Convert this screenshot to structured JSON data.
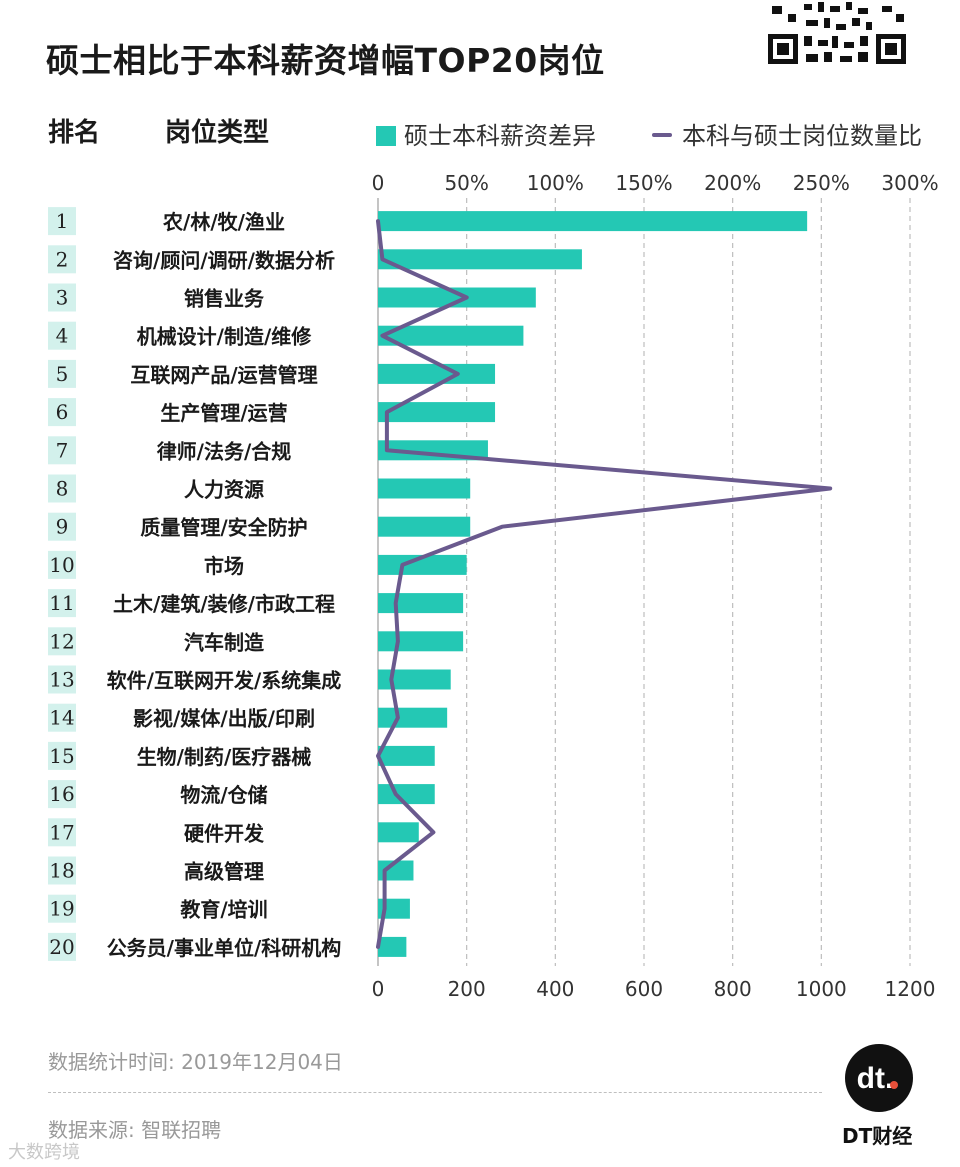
{
  "title": "硕士相比于本科薪资增幅TOP20岗位",
  "header": {
    "rank": "排名",
    "type": "岗位类型"
  },
  "legend": {
    "bar": "硕士本科薪资差异",
    "line": "本科与硕士岗位数量比"
  },
  "colors": {
    "bar": "#24c8b4",
    "line": "#6a5a8e",
    "rank_bg": "#d3f1ec"
  },
  "chart_data": {
    "type": "bar",
    "orientation": "horizontal",
    "categories": [
      "农/林/牧/渔业",
      "咨询/顾问/调研/数据分析",
      "销售业务",
      "机械设计/制造/维修",
      "互联网产品/运营管理",
      "生产管理/运营",
      "律师/法务/合规",
      "人力资源",
      "质量管理/安全防护",
      "市场",
      "土木/建筑/装修/市政工程",
      "汽车制造",
      "软件/互联网开发/系统集成",
      "影视/媒体/出版/印刷",
      "生物/制药/医疗器械",
      "物流/仓储",
      "硬件开发",
      "高级管理",
      "教育/培训",
      "公务员/事业单位/科研机构"
    ],
    "ranks": [
      "1",
      "2",
      "3",
      "4",
      "5",
      "6",
      "7",
      "8",
      "9",
      "10",
      "11",
      "12",
      "13",
      "14",
      "15",
      "16",
      "17",
      "18",
      "19",
      "20"
    ],
    "series": [
      {
        "name": "硕士本科薪资差异",
        "kind": "bar",
        "axis": "top",
        "unit": "%",
        "values": [
          242,
          115,
          89,
          82,
          66,
          66,
          62,
          52,
          52,
          50,
          48,
          48,
          41,
          39,
          32,
          32,
          23,
          20,
          18,
          16
        ]
      },
      {
        "name": "本科与硕士岗位数量比",
        "kind": "line",
        "axis": "bottom",
        "values": [
          0,
          10,
          200,
          10,
          180,
          20,
          20,
          1020,
          280,
          55,
          40,
          45,
          30,
          45,
          0,
          40,
          125,
          15,
          15,
          0
        ]
      }
    ],
    "top_axis": {
      "min": 0,
      "max": 300,
      "ticks": [
        "0",
        "50%",
        "100%",
        "150%",
        "200%",
        "250%",
        "300%"
      ]
    },
    "bottom_axis": {
      "min": 0,
      "max": 1200,
      "ticks": [
        "0",
        "200",
        "400",
        "600",
        "800",
        "1000",
        "1200"
      ]
    }
  },
  "footer": {
    "stats_time": "数据统计时间: 2019年12月04日",
    "source": "数据来源: 智联招聘",
    "logo_mark": "dt.",
    "logo_text": "DT财经",
    "corner_watermark": "大数跨境"
  }
}
